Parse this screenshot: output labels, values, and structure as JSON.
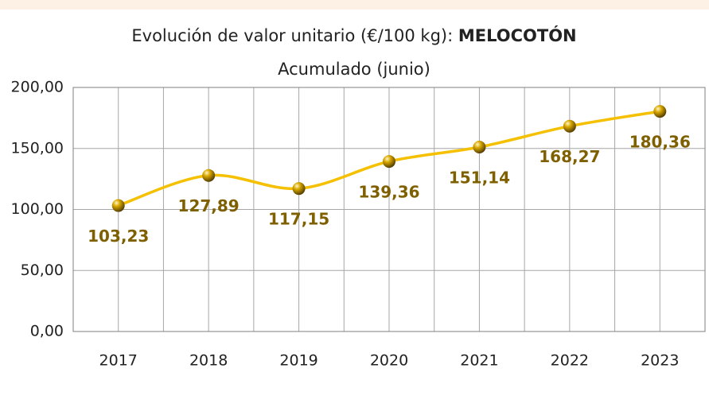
{
  "chart_data": {
    "type": "line",
    "title": "Evolución de valor unitario (€/100 kg):",
    "title_emphasis": "MELOCOTÓN",
    "subtitle": "Acumulado (junio)",
    "categories": [
      "2017",
      "2018",
      "2019",
      "2020",
      "2021",
      "2022",
      "2023"
    ],
    "values": [
      103.23,
      127.89,
      117.15,
      139.36,
      151.14,
      168.27,
      180.36
    ],
    "value_labels": [
      "103,23",
      "127,89",
      "117,15",
      "139,36",
      "151,14",
      "168,27",
      "180,36"
    ],
    "color": "#f5c000",
    "ylim": [
      0,
      200
    ],
    "yticks": [
      {
        "value": 0,
        "label": "0,00"
      },
      {
        "value": 50,
        "label": "50,00"
      },
      {
        "value": 100,
        "label": "100,00"
      },
      {
        "value": 150,
        "label": "150,00"
      },
      {
        "value": 200,
        "label": "200,00"
      }
    ],
    "grid": true
  }
}
